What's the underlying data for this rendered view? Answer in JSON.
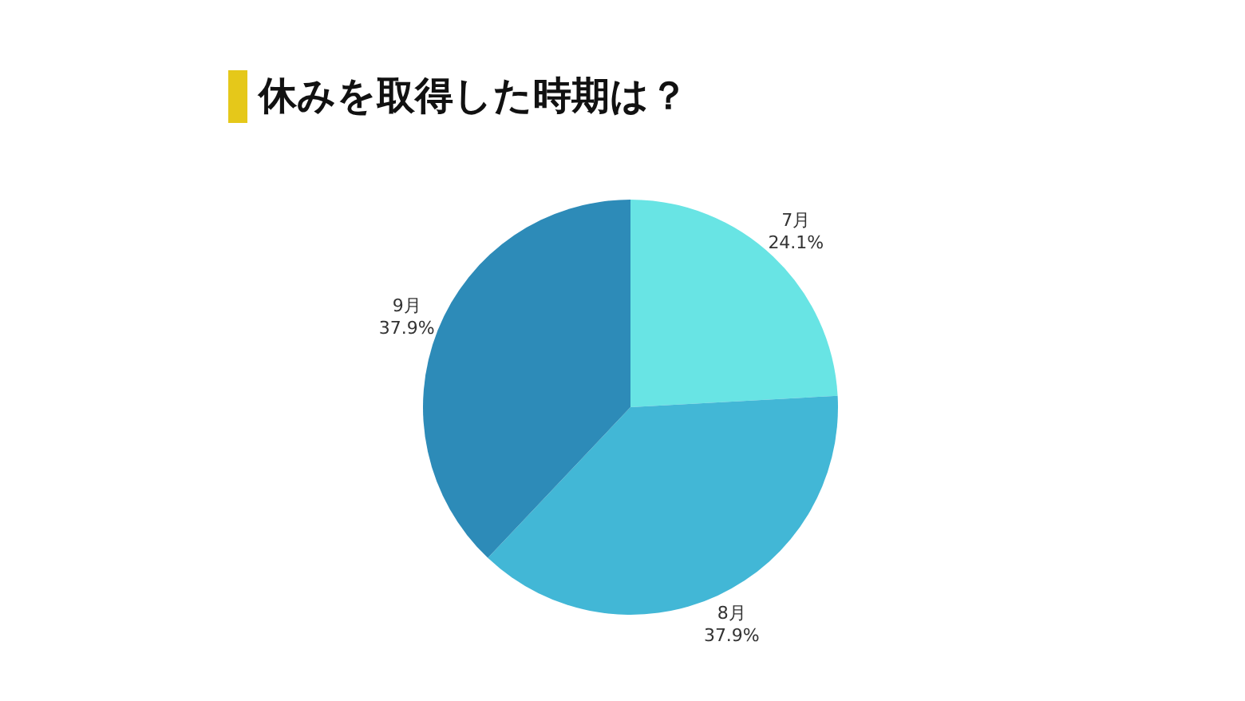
{
  "chart_data": {
    "type": "pie",
    "title": "休みを取得した時期は？",
    "categories": [
      "7月",
      "8月",
      "9月"
    ],
    "values": [
      24.1,
      37.9,
      37.9
    ],
    "value_labels": [
      "24.1%",
      "37.9%",
      "37.9%"
    ],
    "colors": [
      "#68e4e4",
      "#42b7d6",
      "#2d8bb8"
    ],
    "legend": false
  }
}
